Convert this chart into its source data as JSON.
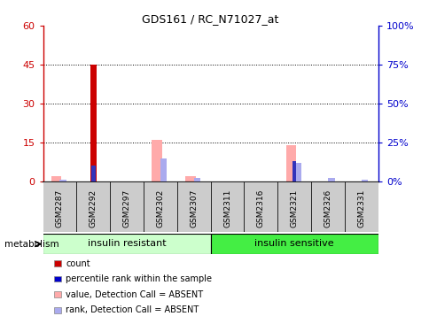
{
  "title": "GDS161 / RC_N71027_at",
  "samples": [
    "GSM2287",
    "GSM2292",
    "GSM2297",
    "GSM2302",
    "GSM2307",
    "GSM2311",
    "GSM2316",
    "GSM2321",
    "GSM2326",
    "GSM2331"
  ],
  "count_values": [
    0,
    45,
    0,
    0,
    0,
    0,
    0,
    0,
    0,
    0
  ],
  "rank_values": [
    0,
    10,
    0,
    0,
    0,
    0,
    0,
    13,
    0,
    0
  ],
  "pink_values": [
    2,
    0,
    0,
    16,
    2,
    0,
    0,
    14,
    0,
    0
  ],
  "blue_rank_values": [
    1,
    0,
    0,
    15,
    2,
    0,
    0,
    12,
    2,
    1
  ],
  "ylim_left": [
    0,
    60
  ],
  "ylim_right": [
    0,
    100
  ],
  "yticks_left": [
    0,
    15,
    30,
    45,
    60
  ],
  "yticks_right": [
    0,
    25,
    50,
    75,
    100
  ],
  "yticklabels_left": [
    "0",
    "15",
    "30",
    "45",
    "60"
  ],
  "yticklabels_right": [
    "0%",
    "25%",
    "50%",
    "75%",
    "100%"
  ],
  "group1_label": "insulin resistant",
  "group2_label": "insulin sensitive",
  "group1_indices": [
    0,
    1,
    2,
    3,
    4
  ],
  "group2_indices": [
    5,
    6,
    7,
    8,
    9
  ],
  "metabolism_label": "metabolism",
  "legend_items": [
    {
      "label": "count",
      "color": "#cc0000"
    },
    {
      "label": "percentile rank within the sample",
      "color": "#0000cc"
    },
    {
      "label": "value, Detection Call = ABSENT",
      "color": "#ffaaaa"
    },
    {
      "label": "rank, Detection Call = ABSENT",
      "color": "#aaaaee"
    }
  ],
  "bar_color_count": "#cc0000",
  "bar_color_rank": "#3333bb",
  "bar_color_pink": "#ffaaaa",
  "bar_color_blue_rank": "#aaaaee",
  "grid_color": "#000000",
  "axis_left_color": "#cc0000",
  "axis_right_color": "#0000cc",
  "bg_color": "#ffffff",
  "group_bg_color1": "#ccffcc",
  "group_bg_color2": "#44ee44",
  "sample_bg_color": "#cccccc",
  "pink_bar_width": 0.3,
  "blue_bar_width": 0.2,
  "count_bar_width": 0.18,
  "rank_bar_width": 0.12
}
